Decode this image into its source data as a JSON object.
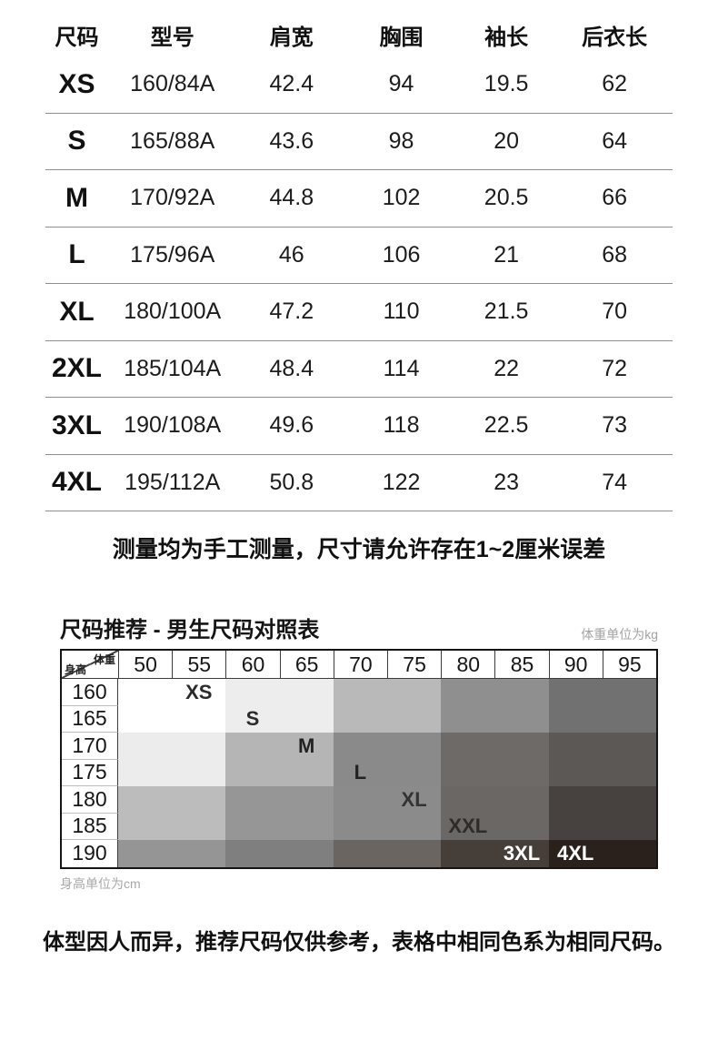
{
  "size_table": {
    "headers": [
      "尺码",
      "型号",
      "肩宽",
      "胸围",
      "袖长",
      "后衣长"
    ],
    "rows": [
      [
        "XS",
        "160/84A",
        "42.4",
        "94",
        "19.5",
        "62"
      ],
      [
        "S",
        "165/88A",
        "43.6",
        "98",
        "20",
        "64"
      ],
      [
        "M",
        "170/92A",
        "44.8",
        "102",
        "20.5",
        "66"
      ],
      [
        "L",
        "175/96A",
        "46",
        "106",
        "21",
        "68"
      ],
      [
        "XL",
        "180/100A",
        "47.2",
        "110",
        "21.5",
        "70"
      ],
      [
        "2XL",
        "185/104A",
        "48.4",
        "114",
        "22",
        "72"
      ],
      [
        "3XL",
        "190/108A",
        "49.6",
        "118",
        "22.5",
        "73"
      ],
      [
        "4XL",
        "195/112A",
        "50.8",
        "122",
        "23",
        "74"
      ]
    ],
    "note": "测量均为手工测量，尺寸请允许存在1~2厘米误差"
  },
  "recommendation": {
    "title": "尺码推荐 - 男生尺码对照表",
    "weight_unit_note": "体重单位为kg",
    "height_unit_note": "身高单位为cm",
    "corner_weight": "体重",
    "corner_height": "身高",
    "weights": [
      "50",
      "55",
      "60",
      "65",
      "70",
      "75",
      "80",
      "85",
      "90",
      "95"
    ],
    "heights": [
      "160",
      "165",
      "170",
      "175",
      "180",
      "185",
      "190"
    ],
    "cell_colors": [
      [
        "#ffffff",
        "#ffffff",
        "#ededed",
        "#ededed",
        "#b9b9b9",
        "#b9b9b9",
        "#8f8f8f",
        "#8f8f8f",
        "#717171",
        "#717171"
      ],
      [
        "#ffffff",
        "#ffffff",
        "#ededed",
        "#ededed",
        "#b9b9b9",
        "#b9b9b9",
        "#8f8f8f",
        "#8f8f8f",
        "#717171",
        "#717171"
      ],
      [
        "#ececec",
        "#ececec",
        "#b5b5b5",
        "#b5b5b5",
        "#8a8a8a",
        "#8a8a8a",
        "#6e6a67",
        "#6e6a67",
        "#5c5855",
        "#5c5855"
      ],
      [
        "#ececec",
        "#ececec",
        "#b5b5b5",
        "#b5b5b5",
        "#8a8a8a",
        "#8a8a8a",
        "#6e6a67",
        "#6e6a67",
        "#5c5855",
        "#5c5855"
      ],
      [
        "#bcbcbc",
        "#bcbcbc",
        "#969696",
        "#969696",
        "#8b8b8b",
        "#8b8b8b",
        "#6b6765",
        "#6b6765",
        "#474140",
        "#474140"
      ],
      [
        "#bcbcbc",
        "#bcbcbc",
        "#969696",
        "#969696",
        "#8b8b8b",
        "#8b8b8b",
        "#6b6765",
        "#6b6765",
        "#474140",
        "#474140"
      ],
      [
        "#959595",
        "#959595",
        "#7f7f7f",
        "#7f7f7f",
        "#6a6561",
        "#6a6561",
        "#453e39",
        "#453e39",
        "#2b211c",
        "#2b211c"
      ]
    ],
    "size_labels": [
      {
        "row": 0,
        "col": 1,
        "text": "XS",
        "color": "#2b2b2b"
      },
      {
        "row": 1,
        "col": 2,
        "text": "S",
        "color": "#2b2b2b"
      },
      {
        "row": 2,
        "col": 3,
        "text": "M",
        "color": "#222222"
      },
      {
        "row": 3,
        "col": 4,
        "text": "L",
        "color": "#222222"
      },
      {
        "row": 4,
        "col": 5,
        "text": "XL",
        "color": "#333333"
      },
      {
        "row": 5,
        "col": 6,
        "text": "XXL",
        "color": "#2e2b29"
      },
      {
        "row": 6,
        "col": 7,
        "text": "3XL",
        "color": "#ffffff"
      },
      {
        "row": 6,
        "col": 8,
        "text": "4XL",
        "color": "#ffffff"
      }
    ]
  },
  "footer_note": "体型因人而异，推荐尺码仅供参考，表格中相同色系为相同尺码。"
}
